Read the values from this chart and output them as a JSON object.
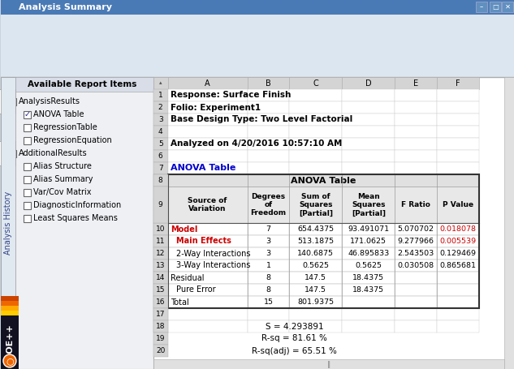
{
  "title": "Analysis Summary",
  "meta_texts": [
    [
      1,
      "Response: Surface Finish"
    ],
    [
      2,
      "Folio: Experiment1"
    ],
    [
      3,
      "Base Design Type: Two Level Factorial"
    ],
    [
      5,
      "Analyzed on 4/20/2016 10:57:10 AM"
    ]
  ],
  "anova_label": "ANOVA Table",
  "table_title": "ANOVA Table",
  "col_headers": [
    "Source of\nVariation",
    "Degrees\nof\nFreedom",
    "Sum of\nSquares\n[Partial]",
    "Mean\nSquares\n[Partial]",
    "F Ratio",
    "P Value"
  ],
  "row_labels": [
    "Model",
    "Main Effects",
    "2-Way Interactions",
    "3-Way Interactions",
    "Residual",
    "Pure Error",
    "Total"
  ],
  "row_colors": [
    "#cc0000",
    "#cc0000",
    "#000000",
    "#000000",
    "#000000",
    "#000000",
    "#000000"
  ],
  "table_data": [
    [
      "7",
      "654.4375",
      "93.491071",
      "5.070702",
      "0.018078"
    ],
    [
      "3",
      "513.1875",
      "171.0625",
      "9.277966",
      "0.005539"
    ],
    [
      "3",
      "140.6875",
      "46.895833",
      "2.543503",
      "0.129469"
    ],
    [
      "1",
      "0.5625",
      "0.5625",
      "0.030508",
      "0.865681"
    ],
    [
      "8",
      "147.5",
      "18.4375",
      "",
      ""
    ],
    [
      "8",
      "147.5",
      "18.4375",
      "",
      ""
    ],
    [
      "15",
      "801.9375",
      "",
      "",
      ""
    ]
  ],
  "p_value_red_rows": [
    0,
    1
  ],
  "footer_rows": [
    "S = 4.293891",
    "R-sq = 81.61 %",
    "R-sq(adj) = 65.51 %"
  ],
  "col_letters": [
    "A",
    "B",
    "C",
    "D",
    "E",
    "F"
  ],
  "header_bg": "#d4d4d4",
  "table_header_bg": "#e8e8e8",
  "blue_color": "#0000cc",
  "red_color": "#cc0000",
  "left_panel_bg": "#eef0f4",
  "tree_items": [
    {
      "label": "AnalysisResults",
      "checked": true,
      "indent": 0,
      "bold": false
    },
    {
      "label": "ANOVA Table",
      "checked": true,
      "indent": 1,
      "bold": false
    },
    {
      "label": "RegressionTable",
      "checked": false,
      "indent": 1,
      "bold": false
    },
    {
      "label": "RegressionEquation",
      "checked": false,
      "indent": 1,
      "bold": false
    },
    {
      "label": "AdditionalResults",
      "checked": false,
      "indent": 0,
      "bold": false
    },
    {
      "label": "Alias Structure",
      "checked": false,
      "indent": 1,
      "bold": false
    },
    {
      "label": "Alias Summary",
      "checked": false,
      "indent": 1,
      "bold": false
    },
    {
      "label": "Var/Cov Matrix",
      "checked": false,
      "indent": 1,
      "bold": false
    },
    {
      "label": "DiagnosticInformation",
      "checked": false,
      "indent": 1,
      "bold": false
    },
    {
      "label": "Least Squares Means",
      "checked": false,
      "indent": 1,
      "bold": false
    }
  ]
}
